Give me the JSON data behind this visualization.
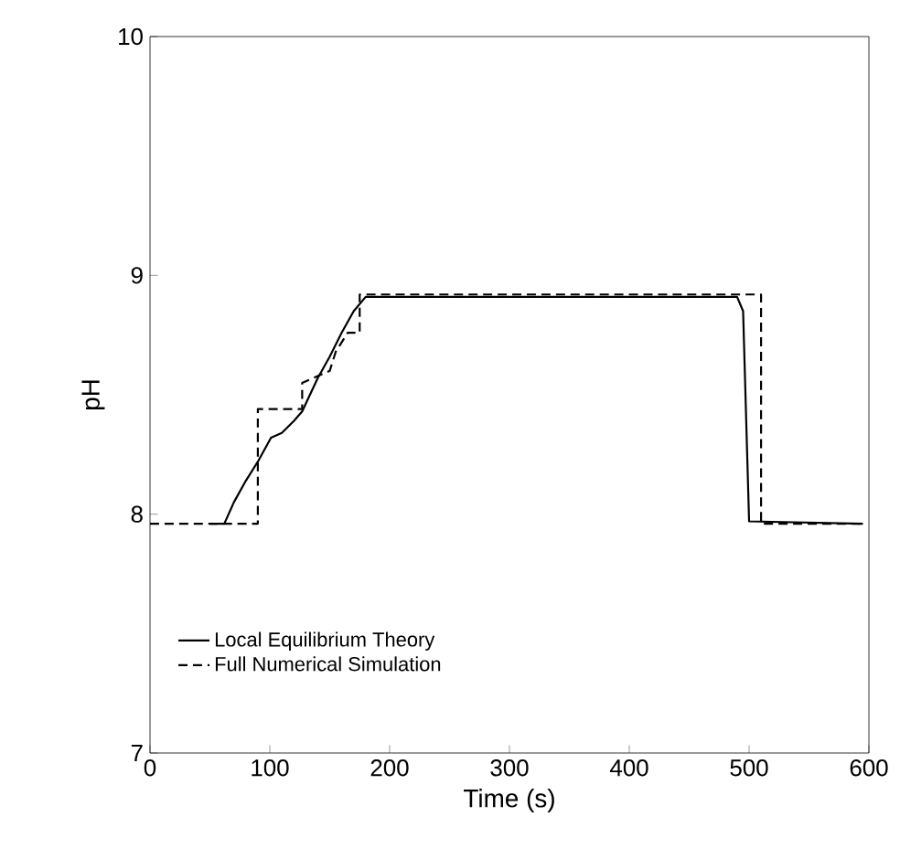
{
  "chart_data": {
    "type": "line",
    "xlabel": "Time (s)",
    "ylabel": "pH",
    "xlim": [
      0,
      600
    ],
    "ylim": [
      7,
      10
    ],
    "xticks": [
      0,
      100,
      200,
      300,
      400,
      500,
      600
    ],
    "yticks": [
      7,
      8,
      9,
      10
    ],
    "grid": false,
    "legend": "bottom left",
    "series": [
      {
        "name": "Local Equilibrium Theory",
        "color": "#000000",
        "line_style": "solid",
        "x": [
          50,
          62,
          70,
          80,
          90,
          101,
          110,
          120,
          127,
          140,
          150,
          160,
          170,
          180,
          490,
          495,
          500,
          595
        ],
        "values": [
          7.96,
          7.96,
          8.05,
          8.14,
          8.22,
          8.32,
          8.34,
          8.39,
          8.43,
          8.57,
          8.66,
          8.76,
          8.85,
          8.91,
          8.91,
          8.85,
          7.97,
          7.96
        ]
      },
      {
        "name": "Full Numerical Simulation",
        "color": "#000000",
        "line_style": "dashed",
        "x": [
          0,
          90,
          90,
          127,
          127,
          150,
          155,
          165,
          175,
          175,
          510,
          510,
          595
        ],
        "values": [
          7.96,
          7.96,
          8.44,
          8.44,
          8.55,
          8.6,
          8.68,
          8.76,
          8.76,
          8.92,
          8.92,
          7.96,
          7.96
        ]
      }
    ]
  }
}
